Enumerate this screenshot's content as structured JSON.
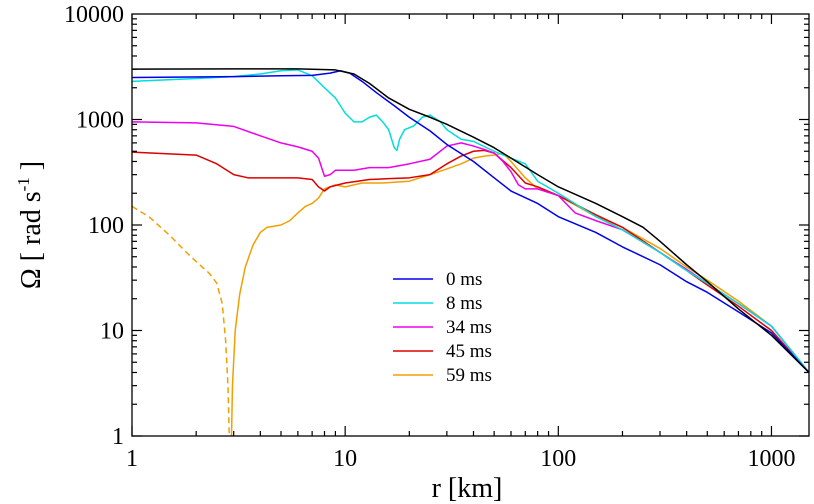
{
  "chart_data": {
    "type": "line",
    "title": "",
    "xlabel": "r [km]",
    "ylabel": {
      "main": "Ω [ rad s",
      "exponent": "-1",
      "close": " ]"
    },
    "xscale": "log",
    "yscale": "log",
    "xlim": [
      1,
      1500
    ],
    "ylim": [
      1,
      10000
    ],
    "x_ticks": [
      1,
      10,
      100,
      1000
    ],
    "x_tick_labels": [
      "1",
      "10",
      "100",
      "1000"
    ],
    "y_ticks": [
      1,
      10,
      100,
      1000,
      10000
    ],
    "y_tick_labels": [
      "1",
      "10",
      "100",
      "1000",
      "10000"
    ],
    "legend_position": "center-bottom",
    "series": [
      {
        "name": "",
        "color": "#000000",
        "dash": false,
        "in_legend": false,
        "points": [
          [
            1,
            3000
          ],
          [
            3,
            3020
          ],
          [
            6,
            3020
          ],
          [
            9,
            2950
          ],
          [
            11,
            2700
          ],
          [
            13,
            2200
          ],
          [
            16,
            1600
          ],
          [
            20,
            1250
          ],
          [
            25,
            1050
          ],
          [
            30,
            900
          ],
          [
            40,
            680
          ],
          [
            50,
            540
          ],
          [
            60,
            430
          ],
          [
            80,
            300
          ],
          [
            100,
            230
          ],
          [
            150,
            160
          ],
          [
            200,
            120
          ],
          [
            250,
            95
          ],
          [
            300,
            70
          ],
          [
            400,
            42
          ],
          [
            500,
            29
          ],
          [
            700,
            16
          ],
          [
            1000,
            9
          ],
          [
            1500,
            4
          ]
        ]
      },
      {
        "name": "0 ms",
        "color": "#0000ee",
        "dash": false,
        "in_legend": true,
        "points": [
          [
            1,
            2500
          ],
          [
            3,
            2550
          ],
          [
            5,
            2600
          ],
          [
            7,
            2620
          ],
          [
            8.5,
            2750
          ],
          [
            9.5,
            2900
          ],
          [
            10.5,
            2750
          ],
          [
            12,
            2300
          ],
          [
            14,
            1800
          ],
          [
            17,
            1350
          ],
          [
            20,
            1050
          ],
          [
            25,
            780
          ],
          [
            30,
            580
          ],
          [
            40,
            400
          ],
          [
            50,
            280
          ],
          [
            60,
            210
          ],
          [
            80,
            160
          ],
          [
            100,
            120
          ],
          [
            150,
            85
          ],
          [
            200,
            62
          ],
          [
            300,
            42
          ],
          [
            400,
            29
          ],
          [
            500,
            23
          ],
          [
            700,
            15
          ],
          [
            1000,
            9.5
          ],
          [
            1500,
            4
          ]
        ]
      },
      {
        "name": "8 ms",
        "color": "#00dddd",
        "dash": false,
        "in_legend": true,
        "points": [
          [
            1,
            2300
          ],
          [
            2,
            2450
          ],
          [
            3,
            2550
          ],
          [
            4,
            2700
          ],
          [
            5,
            2900
          ],
          [
            6,
            2950
          ],
          [
            7,
            2600
          ],
          [
            8,
            2000
          ],
          [
            9,
            1600
          ],
          [
            10,
            1150
          ],
          [
            11,
            950
          ],
          [
            12,
            950
          ],
          [
            13,
            1050
          ],
          [
            14,
            1100
          ],
          [
            15,
            950
          ],
          [
            16,
            800
          ],
          [
            17,
            540
          ],
          [
            17.5,
            510
          ],
          [
            18,
            650
          ],
          [
            19,
            800
          ],
          [
            21,
            870
          ],
          [
            23,
            1050
          ],
          [
            25,
            1100
          ],
          [
            28,
            950
          ],
          [
            30,
            800
          ],
          [
            35,
            650
          ],
          [
            40,
            620
          ],
          [
            50,
            500
          ],
          [
            60,
            430
          ],
          [
            70,
            380
          ],
          [
            80,
            260
          ],
          [
            100,
            200
          ],
          [
            150,
            120
          ],
          [
            200,
            90
          ],
          [
            300,
            55
          ],
          [
            400,
            37
          ],
          [
            500,
            28
          ],
          [
            700,
            18
          ],
          [
            1000,
            11
          ],
          [
            1500,
            4
          ]
        ]
      },
      {
        "name": "34 ms",
        "color": "#ee00ee",
        "dash": false,
        "in_legend": true,
        "points": [
          [
            1,
            950
          ],
          [
            2,
            930
          ],
          [
            3,
            860
          ],
          [
            4,
            700
          ],
          [
            5,
            600
          ],
          [
            6,
            550
          ],
          [
            7,
            500
          ],
          [
            7.5,
            430
          ],
          [
            8,
            290
          ],
          [
            8.5,
            300
          ],
          [
            9,
            330
          ],
          [
            11,
            330
          ],
          [
            13,
            350
          ],
          [
            16,
            350
          ],
          [
            20,
            380
          ],
          [
            25,
            420
          ],
          [
            30,
            560
          ],
          [
            35,
            600
          ],
          [
            40,
            560
          ],
          [
            45,
            520
          ],
          [
            50,
            480
          ],
          [
            55,
            400
          ],
          [
            60,
            320
          ],
          [
            65,
            240
          ],
          [
            70,
            220
          ],
          [
            80,
            220
          ],
          [
            100,
            190
          ],
          [
            120,
            130
          ],
          [
            150,
            110
          ],
          [
            200,
            90
          ],
          [
            300,
            55
          ],
          [
            400,
            38
          ],
          [
            500,
            28
          ],
          [
            700,
            18
          ],
          [
            1000,
            11
          ],
          [
            1500,
            4
          ]
        ]
      },
      {
        "name": "45 ms",
        "color": "#dd0000",
        "dash": false,
        "in_legend": true,
        "points": [
          [
            1,
            490
          ],
          [
            2,
            460
          ],
          [
            2.5,
            380
          ],
          [
            3,
            300
          ],
          [
            3.5,
            280
          ],
          [
            4,
            280
          ],
          [
            5,
            280
          ],
          [
            6,
            280
          ],
          [
            7,
            270
          ],
          [
            7.5,
            230
          ],
          [
            8,
            210
          ],
          [
            8.5,
            230
          ],
          [
            10,
            250
          ],
          [
            13,
            270
          ],
          [
            16,
            275
          ],
          [
            20,
            280
          ],
          [
            25,
            300
          ],
          [
            30,
            380
          ],
          [
            35,
            450
          ],
          [
            40,
            500
          ],
          [
            45,
            510
          ],
          [
            50,
            480
          ],
          [
            60,
            350
          ],
          [
            70,
            250
          ],
          [
            80,
            230
          ],
          [
            100,
            190
          ],
          [
            150,
            125
          ],
          [
            200,
            95
          ],
          [
            300,
            55
          ],
          [
            400,
            37
          ],
          [
            500,
            27
          ],
          [
            700,
            17
          ],
          [
            1000,
            10
          ],
          [
            1500,
            4
          ]
        ]
      },
      {
        "name": "59 ms",
        "color": "#f0a000",
        "dash": false,
        "in_legend": true,
        "points": [
          [
            2.93,
            1
          ],
          [
            2.96,
            3
          ],
          [
            3.05,
            10
          ],
          [
            3.2,
            22
          ],
          [
            3.4,
            40
          ],
          [
            3.7,
            65
          ],
          [
            4,
            85
          ],
          [
            4.3,
            95
          ],
          [
            5,
            100
          ],
          [
            5.5,
            110
          ],
          [
            6,
            130
          ],
          [
            6.5,
            150
          ],
          [
            7,
            160
          ],
          [
            7.5,
            180
          ],
          [
            8,
            220
          ],
          [
            9,
            240
          ],
          [
            10,
            230
          ],
          [
            12,
            250
          ],
          [
            15,
            250
          ],
          [
            20,
            260
          ],
          [
            25,
            300
          ],
          [
            30,
            340
          ],
          [
            35,
            380
          ],
          [
            40,
            430
          ],
          [
            45,
            450
          ],
          [
            50,
            460
          ],
          [
            55,
            480
          ],
          [
            60,
            400
          ],
          [
            70,
            280
          ],
          [
            80,
            220
          ],
          [
            100,
            190
          ],
          [
            150,
            120
          ],
          [
            200,
            95
          ],
          [
            300,
            60
          ],
          [
            400,
            40
          ],
          [
            500,
            30
          ],
          [
            700,
            19
          ],
          [
            1000,
            11
          ],
          [
            1500,
            4
          ]
        ]
      },
      {
        "name": "",
        "color": "#f0a000",
        "dash": true,
        "in_legend": false,
        "points": [
          [
            1,
            150
          ],
          [
            1.2,
            120
          ],
          [
            1.5,
            80
          ],
          [
            1.8,
            55
          ],
          [
            2,
            45
          ],
          [
            2.3,
            35
          ],
          [
            2.5,
            28
          ],
          [
            2.65,
            18
          ],
          [
            2.75,
            8
          ],
          [
            2.82,
            3
          ],
          [
            2.86,
            1
          ]
        ]
      }
    ]
  }
}
